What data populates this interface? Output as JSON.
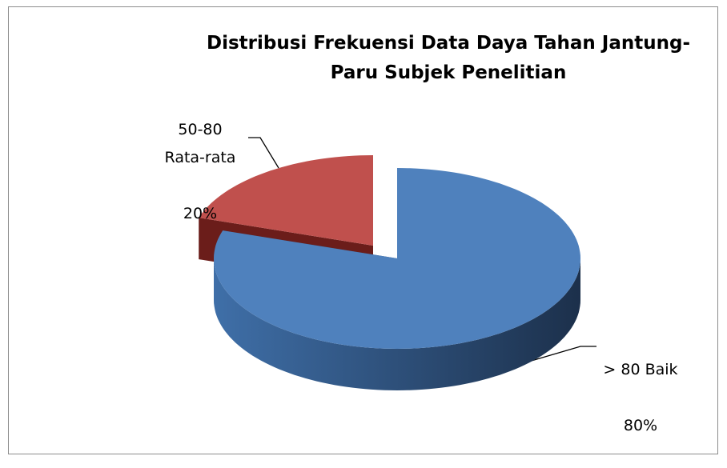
{
  "chart_data": {
    "type": "pie",
    "title": "Distribusi Frekuensi Data Daya Tahan Jantung-\nParu Subjek Penelitian",
    "categories": [
      "> 80 Baik",
      "50-80\nRata-rata"
    ],
    "values": [
      80,
      20
    ],
    "value_labels": [
      "80%",
      "20%"
    ],
    "colors": [
      "#4f81bd",
      "#c0504d"
    ]
  }
}
